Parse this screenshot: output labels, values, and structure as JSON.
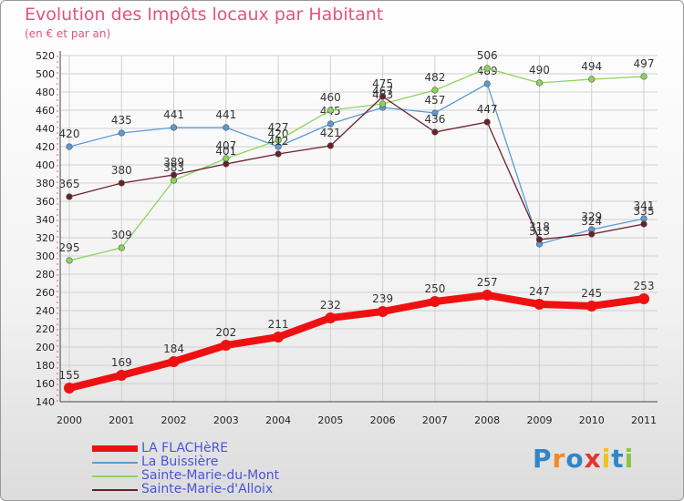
{
  "title": "Evolution des Impôts locaux par Habitant",
  "subtitle": "(en € et par an)",
  "logo_text": "Proxiti",
  "chart_data": {
    "type": "line",
    "x": [
      "2000",
      "2001",
      "2002",
      "2003",
      "2004",
      "2005",
      "2006",
      "2007",
      "2008",
      "2009",
      "2010",
      "2011"
    ],
    "ylim": [
      140,
      520
    ],
    "yticks": [
      140,
      160,
      180,
      200,
      220,
      240,
      260,
      280,
      300,
      320,
      340,
      360,
      380,
      400,
      420,
      440,
      460,
      480,
      500,
      520
    ],
    "grid": true,
    "legend_position": "bottom-left",
    "series": [
      {
        "name": "LA FLACHèRE",
        "color": "#ee1111",
        "width": 8,
        "values": [
          155,
          169,
          184,
          202,
          211,
          232,
          239,
          250,
          257,
          247,
          245,
          253
        ]
      },
      {
        "name": "La Buissière",
        "color": "#5b9bd5",
        "width": 1.3,
        "values": [
          420,
          435,
          441,
          441,
          420,
          445,
          463,
          457,
          489,
          313,
          329,
          341
        ]
      },
      {
        "name": "Sainte-Marie-du-Mont",
        "color": "#8cd55b",
        "width": 1.3,
        "values": [
          295,
          309,
          383,
          407,
          427,
          460,
          467,
          482,
          506,
          490,
          494,
          497
        ]
      },
      {
        "name": "Sainte-Marie-d'Alloix",
        "color": "#6b1f2a",
        "width": 1.3,
        "values": [
          365,
          380,
          389,
          401,
          412,
          421,
          475,
          436,
          447,
          318,
          324,
          335
        ]
      }
    ]
  }
}
